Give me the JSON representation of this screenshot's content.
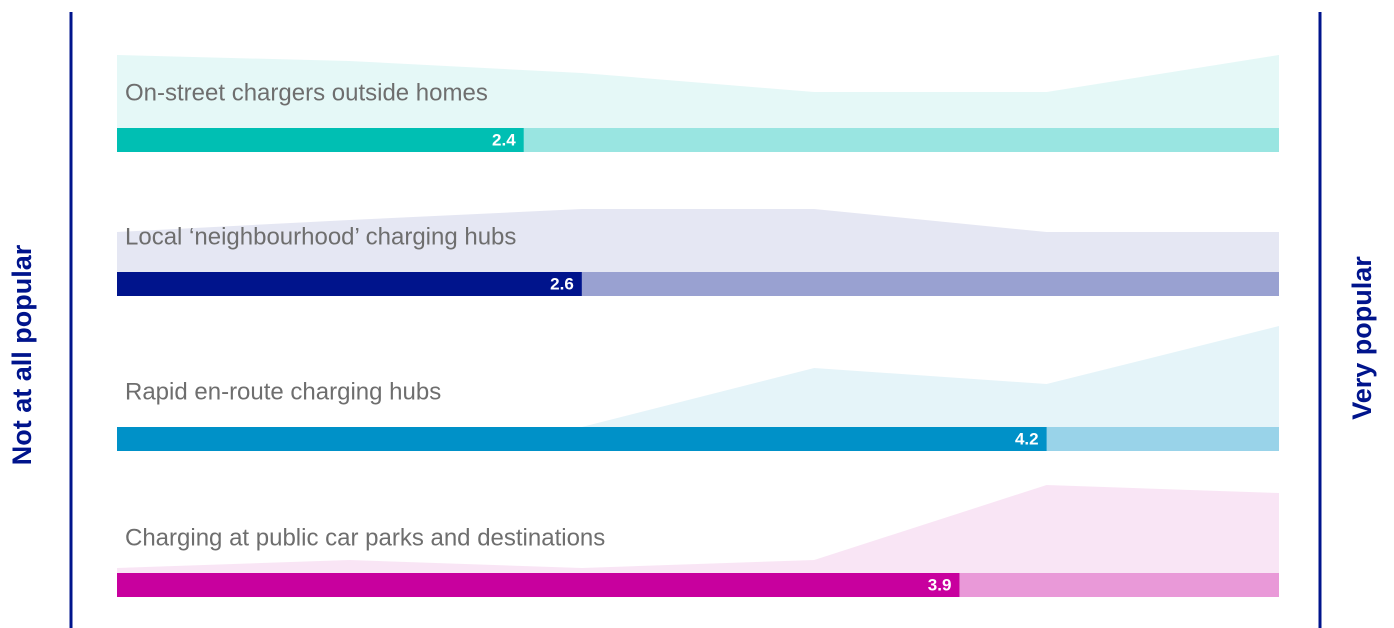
{
  "chart_data": {
    "type": "bar",
    "left_label": "Not at all popular",
    "right_label": "Very popular",
    "xlim": [
      1,
      5
    ],
    "series": [
      {
        "name": "On-street chargers outside homes",
        "color": "#00bfb3",
        "values": [
          2.4
        ],
        "distribution": [
          73,
          67,
          55,
          36,
          36,
          73
        ]
      },
      {
        "name": "Local ‘neighbourhood’ charging hubs",
        "color": "#00148c",
        "values": [
          2.6
        ],
        "distribution": [
          40,
          52,
          63,
          63,
          40,
          40
        ]
      },
      {
        "name": "Rapid en-route charging hubs",
        "color": "#0091c8",
        "values": [
          4.2
        ],
        "distribution": [
          0,
          0,
          0,
          59,
          43,
          101
        ]
      },
      {
        "name": "Charging at public car parks and destinations",
        "color": "#c8009e",
        "values": [
          3.9
        ],
        "distribution": [
          5,
          13,
          5,
          13,
          88,
          80
        ]
      }
    ]
  }
}
